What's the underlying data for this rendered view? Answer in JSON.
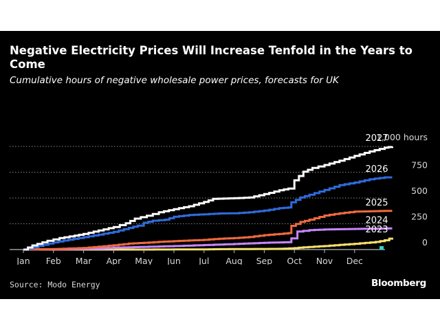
{
  "header": {
    "title": "Negative Electricity Prices Will Increase Tenfold in the Years to Come",
    "subtitle": "Cumulative hours of negative wholesale power prices, forecasts for UK"
  },
  "footer": {
    "source": "Source: Modo Energy",
    "logo": "Bloomberg"
  },
  "colors": {
    "background": "#000000",
    "grid": "#8a8a8a",
    "text": "#ffffff",
    "axis_text": "#d9d9d9"
  },
  "chart_data": {
    "type": "line",
    "title": "Negative Electricity Prices Will Increase Tenfold in the Years to Come",
    "subtitle": "Cumulative hours of negative wholesale power prices, forecasts for UK",
    "xlabel": "",
    "ylabel": "",
    "x_ticks": [
      "Jan",
      "Feb",
      "Mar",
      "Apr",
      "May",
      "Jun",
      "Jul",
      "Aug",
      "Sep",
      "Oct",
      "Nov",
      "Dec"
    ],
    "xlim": [
      0,
      12.3
    ],
    "y_ticks": [
      {
        "value": 0,
        "label": "0"
      },
      {
        "value": 250,
        "label": "250"
      },
      {
        "value": 500,
        "label": "500"
      },
      {
        "value": 750,
        "label": "750"
      },
      {
        "value": 1000,
        "label": "1,000 hours"
      }
    ],
    "ylim": [
      0,
      1000
    ],
    "y_axis_side": "right",
    "grid": "horizontal dotted",
    "legend": "series labels at line ends",
    "series": [
      {
        "name": "2023",
        "color": "#f5e06e",
        "end_value": 115,
        "points": [
          [
            0,
            0
          ],
          [
            4,
            0
          ],
          [
            6,
            2
          ],
          [
            6.5,
            4
          ],
          [
            8.5,
            7
          ],
          [
            9,
            14
          ],
          [
            9.3,
            22
          ],
          [
            10,
            34
          ],
          [
            10.5,
            46
          ],
          [
            11,
            56
          ],
          [
            11.7,
            74
          ],
          [
            12,
            90
          ],
          [
            12.15,
            106
          ],
          [
            12.25,
            115
          ]
        ]
      },
      {
        "name": "2024",
        "color": "#c986ff",
        "end_value": 205,
        "points": [
          [
            0,
            0
          ],
          [
            1.5,
            3
          ],
          [
            2.5,
            10
          ],
          [
            3,
            18
          ],
          [
            4,
            26
          ],
          [
            5,
            34
          ],
          [
            6,
            44
          ],
          [
            7,
            54
          ],
          [
            8,
            66
          ],
          [
            8.8,
            72
          ],
          [
            8.9,
            108
          ],
          [
            9.1,
            175
          ],
          [
            9.5,
            188
          ],
          [
            10,
            195
          ],
          [
            11,
            200
          ],
          [
            12.25,
            205
          ]
        ]
      },
      {
        "name": "2025",
        "color": "#ef6a3f",
        "end_value": 375,
        "points": [
          [
            0,
            0
          ],
          [
            1,
            5
          ],
          [
            2,
            16
          ],
          [
            2.5,
            28
          ],
          [
            3,
            42
          ],
          [
            3.5,
            58
          ],
          [
            4,
            66
          ],
          [
            4.5,
            75
          ],
          [
            5,
            82
          ],
          [
            6,
            94
          ],
          [
            6.5,
            105
          ],
          [
            7,
            112
          ],
          [
            7.5,
            122
          ],
          [
            8,
            140
          ],
          [
            8.5,
            152
          ],
          [
            8.8,
            160
          ],
          [
            8.9,
            230
          ],
          [
            9.2,
            268
          ],
          [
            9.5,
            290
          ],
          [
            10,
            330
          ],
          [
            10.5,
            352
          ],
          [
            11,
            368
          ],
          [
            12,
            375
          ],
          [
            12.25,
            375
          ]
        ]
      },
      {
        "name": "2026",
        "color": "#2f6bdc",
        "end_value": 700,
        "points": [
          [
            0,
            0
          ],
          [
            0.5,
            35
          ],
          [
            1,
            70
          ],
          [
            1.5,
            96
          ],
          [
            2,
            120
          ],
          [
            2.5,
            145
          ],
          [
            3,
            172
          ],
          [
            3.5,
            210
          ],
          [
            3.8,
            232
          ],
          [
            4,
            260
          ],
          [
            4.3,
            280
          ],
          [
            4.7,
            290
          ],
          [
            5,
            318
          ],
          [
            5.5,
            335
          ],
          [
            6,
            342
          ],
          [
            6.5,
            350
          ],
          [
            7,
            352
          ],
          [
            7.5,
            362
          ],
          [
            8,
            378
          ],
          [
            8.5,
            402
          ],
          [
            8.8,
            408
          ],
          [
            8.9,
            458
          ],
          [
            9.2,
            505
          ],
          [
            9.5,
            532
          ],
          [
            10,
            578
          ],
          [
            10.5,
            625
          ],
          [
            11,
            650
          ],
          [
            11.5,
            682
          ],
          [
            12,
            700
          ],
          [
            12.25,
            700
          ]
        ]
      },
      {
        "name": "2027",
        "color": "#ffffff",
        "end_value": 1000,
        "points": [
          [
            0,
            0
          ],
          [
            0.3,
            40
          ],
          [
            0.8,
            85
          ],
          [
            1.2,
            112
          ],
          [
            1.7,
            135
          ],
          [
            2,
            152
          ],
          [
            2.5,
            185
          ],
          [
            3,
            218
          ],
          [
            3.4,
            255
          ],
          [
            3.7,
            300
          ],
          [
            4.1,
            328
          ],
          [
            4.5,
            362
          ],
          [
            5,
            392
          ],
          [
            5.5,
            420
          ],
          [
            6,
            462
          ],
          [
            6.3,
            492
          ],
          [
            7,
            498
          ],
          [
            7.5,
            505
          ],
          [
            8,
            538
          ],
          [
            8.5,
            575
          ],
          [
            8.8,
            592
          ],
          [
            9,
            672
          ],
          [
            9.3,
            755
          ],
          [
            9.6,
            792
          ],
          [
            10,
            820
          ],
          [
            10.5,
            862
          ],
          [
            11,
            908
          ],
          [
            11.5,
            952
          ],
          [
            12,
            988
          ],
          [
            12.25,
            1000
          ]
        ]
      }
    ]
  }
}
